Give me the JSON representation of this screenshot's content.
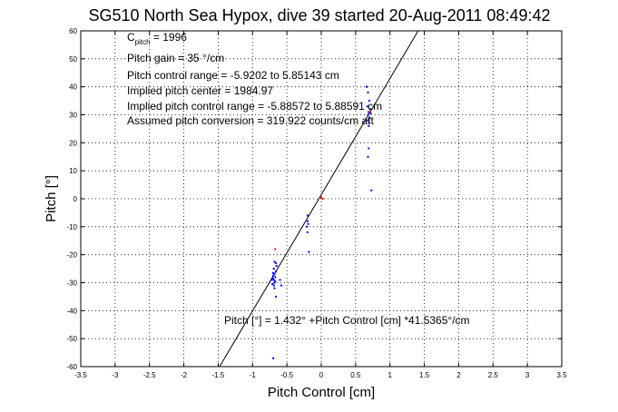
{
  "chart_data": {
    "type": "scatter",
    "title": "SG510 North Sea Hypox, dive 39 started 20-Aug-2011 08:49:42",
    "xlabel": "Pitch Control [cm]",
    "ylabel": "Pitch [°]",
    "xlim": [
      -3.5,
      3.5
    ],
    "ylim": [
      -60,
      60
    ],
    "xticks": [
      -3.5,
      -3,
      -2.5,
      -2,
      -1.5,
      -1,
      -0.5,
      0,
      0.5,
      1,
      1.5,
      2,
      2.5,
      3,
      3.5
    ],
    "xtick_labels": [
      "-3.5",
      "-3",
      "-2.5",
      "-2",
      "-1.5",
      "-1",
      "-0.5",
      "0",
      "0.5",
      "1",
      "1.5",
      "2",
      "2.5",
      "3",
      "3.5"
    ],
    "yticks": [
      -60,
      -50,
      -40,
      -30,
      -20,
      -10,
      0,
      10,
      20,
      30,
      40,
      50,
      60
    ],
    "ytick_labels": [
      "-60",
      "-50",
      "-40",
      "-30",
      "-20",
      "-10",
      "0",
      "10",
      "20",
      "30",
      "40",
      "50",
      "60"
    ],
    "grid": true,
    "annotations": {
      "c_pitch_prefix": "C",
      "c_pitch_sub": "pitch",
      "c_pitch_value": " = 1996",
      "pitch_gain": "Pitch gain = 35 °/cm",
      "control_range": "Pitch control range = -5.9202 to 5.85143 cm",
      "implied_center": "Implied pitch center = 1984.97",
      "implied_range": "Implied pitch control range = -5.88572 to 5.88591 cm",
      "conversion": "Assumed pitch conversion = 319.922 counts/cm aft",
      "fit_equation": "Pitch [°] = 1.432° +Pitch Control [cm] *41.5365°/cm"
    },
    "fit_line": {
      "intercept": 1.432,
      "slope": 41.5365,
      "color": "#000000"
    },
    "series": [
      {
        "color": "#0000ff",
        "points": [
          [
            -0.68,
            -30
          ],
          [
            -0.69,
            -29
          ],
          [
            -0.7,
            -28.5
          ],
          [
            -0.67,
            -29.5
          ],
          [
            -0.71,
            -30.5
          ],
          [
            -0.68,
            -27
          ],
          [
            -0.66,
            -26
          ],
          [
            -0.69,
            -25
          ],
          [
            -0.7,
            -27.5
          ],
          [
            -0.67,
            -28
          ],
          [
            -0.65,
            -24
          ],
          [
            -0.66,
            -23
          ],
          [
            -0.68,
            -22.5
          ],
          [
            -0.7,
            -26.5
          ],
          [
            -0.72,
            -29
          ],
          [
            -0.69,
            -31
          ],
          [
            -0.68,
            -32
          ],
          [
            -0.66,
            -35
          ],
          [
            -0.7,
            -57
          ],
          [
            -0.6,
            -29
          ],
          [
            -0.58,
            -31
          ],
          [
            -0.2,
            -6
          ],
          [
            -0.2,
            -8
          ],
          [
            -0.19,
            -9
          ],
          [
            -0.21,
            -10
          ],
          [
            -0.2,
            -12
          ],
          [
            -0.18,
            -19
          ],
          [
            0.68,
            30
          ],
          [
            0.69,
            31
          ],
          [
            0.7,
            29
          ],
          [
            0.71,
            32
          ],
          [
            0.68,
            28
          ],
          [
            0.67,
            33
          ],
          [
            0.72,
            30.5
          ],
          [
            0.7,
            27
          ],
          [
            0.69,
            26
          ],
          [
            0.7,
            35
          ],
          [
            0.68,
            38
          ],
          [
            0.66,
            40
          ],
          [
            0.69,
            18
          ],
          [
            0.68,
            15
          ],
          [
            0.73,
            3
          ]
        ]
      },
      {
        "color": "#ff0000",
        "points": [
          [
            -0.67,
            -18
          ],
          [
            0.0,
            0.5
          ],
          [
            0.02,
            0
          ],
          [
            0.71,
            31
          ]
        ]
      }
    ]
  }
}
